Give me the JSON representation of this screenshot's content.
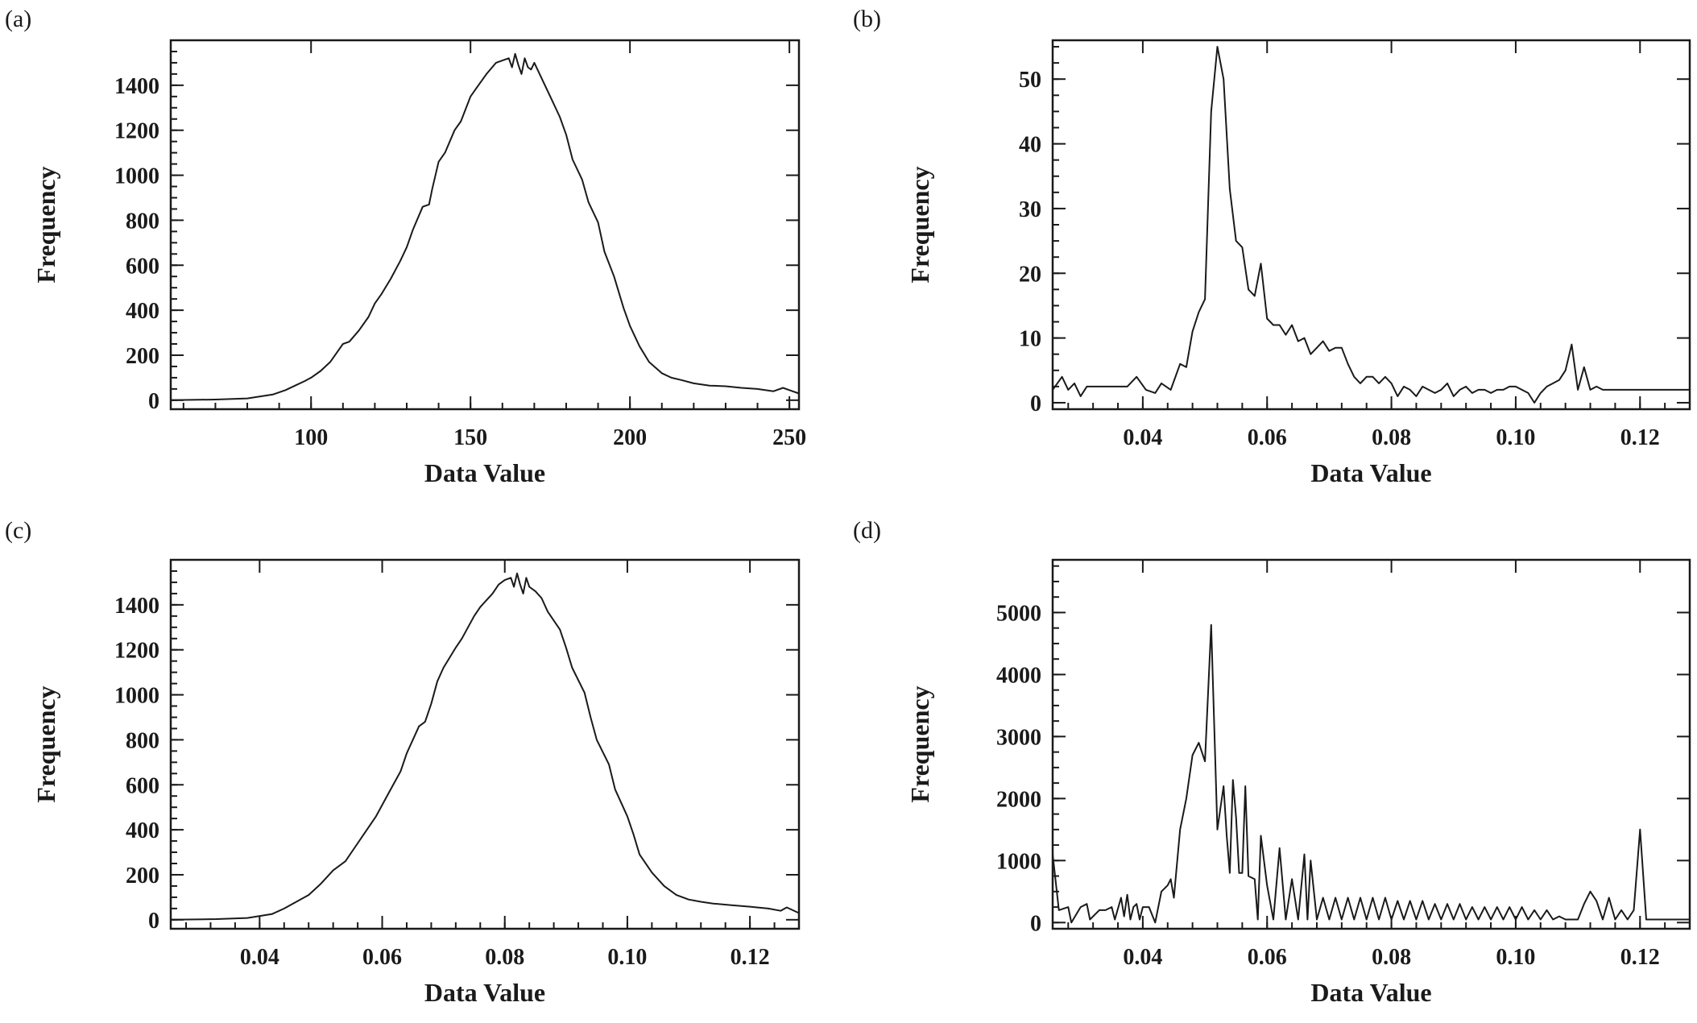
{
  "chart_data": [
    {
      "type": "line",
      "panel_label": "(a)",
      "xlabel": "Data Value",
      "ylabel": "Frequency",
      "xlim": [
        56,
        253
      ],
      "ylim": [
        -40,
        1600
      ],
      "xticks": [
        100,
        150,
        200,
        250
      ],
      "xtick_labels": [
        "100",
        "150",
        "200",
        "250"
      ],
      "yticks": [
        0,
        200,
        400,
        600,
        800,
        1000,
        1200,
        1400
      ],
      "ytick_labels": [
        "0",
        "200",
        "400",
        "600",
        "800",
        "1000",
        "1200",
        "1400"
      ],
      "series": [
        {
          "name": "histogram",
          "x": [
            56,
            70,
            80,
            88,
            92,
            95,
            98,
            100,
            103,
            106,
            108,
            110,
            112,
            115,
            118,
            120,
            122,
            125,
            128,
            130,
            132,
            135,
            137,
            138,
            140,
            142,
            145,
            147,
            150,
            152,
            155,
            158,
            160,
            162,
            163,
            164,
            165,
            166,
            167,
            168,
            169,
            170,
            172,
            175,
            178,
            180,
            182,
            185,
            187,
            190,
            192,
            195,
            198,
            200,
            203,
            206,
            210,
            213,
            216,
            220,
            225,
            230,
            235,
            240,
            245,
            248,
            250,
            253
          ],
          "y": [
            0,
            3,
            8,
            25,
            45,
            65,
            85,
            100,
            130,
            170,
            210,
            250,
            260,
            310,
            370,
            430,
            470,
            540,
            620,
            680,
            760,
            860,
            870,
            940,
            1060,
            1100,
            1200,
            1240,
            1350,
            1390,
            1450,
            1500,
            1510,
            1520,
            1480,
            1540,
            1490,
            1450,
            1520,
            1480,
            1470,
            1500,
            1440,
            1350,
            1260,
            1180,
            1070,
            980,
            880,
            790,
            660,
            550,
            410,
            330,
            240,
            170,
            120,
            100,
            90,
            75,
            65,
            62,
            55,
            50,
            40,
            55,
            45,
            30
          ]
        }
      ]
    },
    {
      "type": "line",
      "panel_label": "(b)",
      "xlabel": "Data Value",
      "ylabel": "Frequency",
      "xlim": [
        0.0255,
        0.128
      ],
      "ylim": [
        -1,
        56
      ],
      "xticks": [
        0.04,
        0.06,
        0.08,
        0.1,
        0.12
      ],
      "xtick_labels": [
        "0.04",
        "0.06",
        "0.08",
        "0.10",
        "0.12"
      ],
      "yticks": [
        0,
        10,
        20,
        30,
        40,
        50
      ],
      "ytick_labels": [
        "0",
        "10",
        "20",
        "30",
        "40",
        "50"
      ],
      "series": [
        {
          "name": "histogram",
          "x": [
            0.0255,
            0.027,
            0.028,
            0.029,
            0.03,
            0.031,
            0.0375,
            0.039,
            0.0405,
            0.042,
            0.043,
            0.0445,
            0.046,
            0.047,
            0.048,
            0.049,
            0.05,
            0.051,
            0.052,
            0.053,
            0.054,
            0.055,
            0.056,
            0.057,
            0.058,
            0.059,
            0.06,
            0.061,
            0.062,
            0.063,
            0.064,
            0.065,
            0.066,
            0.067,
            0.068,
            0.069,
            0.07,
            0.071,
            0.072,
            0.073,
            0.074,
            0.075,
            0.076,
            0.077,
            0.078,
            0.079,
            0.08,
            0.081,
            0.082,
            0.083,
            0.084,
            0.085,
            0.086,
            0.087,
            0.088,
            0.089,
            0.09,
            0.091,
            0.092,
            0.093,
            0.094,
            0.095,
            0.096,
            0.097,
            0.098,
            0.099,
            0.1,
            0.101,
            0.102,
            0.103,
            0.104,
            0.105,
            0.106,
            0.107,
            0.108,
            0.109,
            0.11,
            0.111,
            0.112,
            0.113,
            0.114,
            0.115,
            0.116,
            0.117,
            0.118,
            0.119,
            0.12,
            0.121,
            0.122,
            0.123,
            0.124,
            0.125,
            0.126,
            0.127,
            0.128
          ],
          "y": [
            2,
            4,
            2,
            3,
            1,
            2.5,
            2.5,
            4,
            2,
            1.5,
            3,
            2,
            6,
            5.5,
            11,
            14,
            16,
            45,
            55,
            50,
            33,
            25,
            24,
            17.5,
            16.5,
            21.5,
            13,
            12,
            12,
            10.5,
            12,
            9.5,
            10,
            7.5,
            8.5,
            9.5,
            8,
            8.5,
            8.5,
            6,
            4,
            3,
            4,
            4,
            3,
            4,
            3,
            1,
            2.5,
            2,
            1,
            2.5,
            2,
            1.5,
            2,
            3,
            1,
            2,
            2.5,
            1.5,
            2,
            2,
            1.5,
            2,
            2,
            2.5,
            2.5,
            2,
            1.5,
            0,
            1.5,
            2.5,
            3,
            3.5,
            5,
            9,
            2,
            5.5,
            2,
            2.5,
            2,
            2,
            2,
            2,
            2,
            2,
            2,
            2,
            2,
            2,
            2,
            2,
            2,
            2,
            2
          ]
        }
      ]
    },
    {
      "type": "line",
      "panel_label": "(c)",
      "xlabel": "Data Value",
      "ylabel": "Frequency",
      "xlim": [
        0.0255,
        0.128
      ],
      "ylim": [
        -40,
        1600
      ],
      "xticks": [
        0.04,
        0.06,
        0.08,
        0.1,
        0.12
      ],
      "xtick_labels": [
        "0.04",
        "0.06",
        "0.08",
        "0.10",
        "0.12"
      ],
      "yticks": [
        0,
        200,
        400,
        600,
        800,
        1000,
        1200,
        1400
      ],
      "ytick_labels": [
        "0",
        "200",
        "400",
        "600",
        "800",
        "1000",
        "1200",
        "1400"
      ],
      "series": [
        {
          "name": "histogram",
          "x": [
            0.0255,
            0.033,
            0.038,
            0.042,
            0.044,
            0.046,
            0.048,
            0.05,
            0.052,
            0.054,
            0.055,
            0.057,
            0.059,
            0.061,
            0.063,
            0.064,
            0.066,
            0.067,
            0.068,
            0.069,
            0.07,
            0.072,
            0.073,
            0.075,
            0.076,
            0.078,
            0.079,
            0.08,
            0.081,
            0.0815,
            0.082,
            0.0825,
            0.083,
            0.0835,
            0.084,
            0.085,
            0.086,
            0.087,
            0.089,
            0.09,
            0.091,
            0.093,
            0.094,
            0.095,
            0.097,
            0.098,
            0.1,
            0.101,
            0.102,
            0.104,
            0.106,
            0.108,
            0.11,
            0.112,
            0.114,
            0.117,
            0.12,
            0.123,
            0.125,
            0.126,
            0.128
          ],
          "y": [
            0,
            3,
            8,
            25,
            50,
            80,
            110,
            160,
            220,
            260,
            300,
            380,
            460,
            560,
            660,
            740,
            860,
            880,
            960,
            1060,
            1120,
            1210,
            1250,
            1350,
            1390,
            1450,
            1490,
            1510,
            1520,
            1480,
            1540,
            1490,
            1450,
            1520,
            1480,
            1460,
            1430,
            1370,
            1290,
            1210,
            1120,
            1010,
            900,
            800,
            690,
            580,
            460,
            380,
            290,
            210,
            150,
            110,
            90,
            80,
            72,
            65,
            58,
            50,
            40,
            55,
            30
          ]
        }
      ]
    },
    {
      "type": "line",
      "panel_label": "(d)",
      "xlabel": "Data Value",
      "ylabel": "Frequency",
      "xlim": [
        0.0255,
        0.128
      ],
      "ylim": [
        -100,
        5850
      ],
      "xticks": [
        0.04,
        0.06,
        0.08,
        0.1,
        0.12
      ],
      "xtick_labels": [
        "0.04",
        "0.06",
        "0.08",
        "0.10",
        "0.12"
      ],
      "yticks": [
        0,
        1000,
        2000,
        3000,
        4000,
        5000
      ],
      "ytick_labels": [
        "0",
        "1000",
        "2000",
        "3000",
        "4000",
        "5000"
      ],
      "series": [
        {
          "name": "histogram",
          "x": [
            0.0255,
            0.0265,
            0.028,
            0.0285,
            0.03,
            0.031,
            0.0315,
            0.033,
            0.034,
            0.035,
            0.0355,
            0.0365,
            0.037,
            0.0375,
            0.038,
            0.0385,
            0.039,
            0.0395,
            0.04,
            0.041,
            0.042,
            0.043,
            0.044,
            0.0445,
            0.045,
            0.046,
            0.047,
            0.048,
            0.049,
            0.05,
            0.051,
            0.052,
            0.053,
            0.0535,
            0.054,
            0.0545,
            0.055,
            0.0555,
            0.056,
            0.0565,
            0.057,
            0.058,
            0.0585,
            0.059,
            0.06,
            0.061,
            0.062,
            0.063,
            0.064,
            0.065,
            0.066,
            0.0665,
            0.067,
            0.068,
            0.069,
            0.07,
            0.071,
            0.072,
            0.073,
            0.074,
            0.075,
            0.076,
            0.077,
            0.078,
            0.079,
            0.08,
            0.081,
            0.082,
            0.083,
            0.084,
            0.085,
            0.086,
            0.087,
            0.088,
            0.089,
            0.09,
            0.091,
            0.092,
            0.093,
            0.094,
            0.095,
            0.096,
            0.097,
            0.098,
            0.099,
            0.1,
            0.101,
            0.102,
            0.103,
            0.104,
            0.105,
            0.106,
            0.107,
            0.108,
            0.109,
            0.11,
            0.111,
            0.112,
            0.113,
            0.114,
            0.115,
            0.116,
            0.117,
            0.118,
            0.119,
            0.12,
            0.121,
            0.122,
            0.123,
            0.124,
            0.125,
            0.126,
            0.127,
            0.128
          ],
          "y": [
            1100,
            200,
            250,
            0,
            250,
            300,
            50,
            200,
            200,
            250,
            50,
            400,
            100,
            450,
            50,
            250,
            300,
            50,
            250,
            250,
            0,
            500,
            600,
            700,
            400,
            1500,
            2000,
            2700,
            2900,
            2600,
            4800,
            1500,
            2200,
            1400,
            800,
            2300,
            1700,
            800,
            800,
            2200,
            750,
            700,
            50,
            1400,
            600,
            50,
            1200,
            50,
            700,
            50,
            1100,
            50,
            1000,
            50,
            400,
            50,
            400,
            50,
            400,
            50,
            400,
            50,
            400,
            50,
            400,
            50,
            350,
            50,
            350,
            50,
            350,
            50,
            300,
            50,
            300,
            50,
            300,
            50,
            250,
            50,
            250,
            50,
            250,
            50,
            250,
            50,
            250,
            50,
            200,
            50,
            200,
            50,
            100,
            50,
            50,
            50,
            300,
            500,
            350,
            50,
            400,
            50,
            200,
            50,
            200,
            1500,
            50,
            50,
            50,
            50,
            50,
            50,
            50,
            50
          ]
        }
      ]
    }
  ]
}
